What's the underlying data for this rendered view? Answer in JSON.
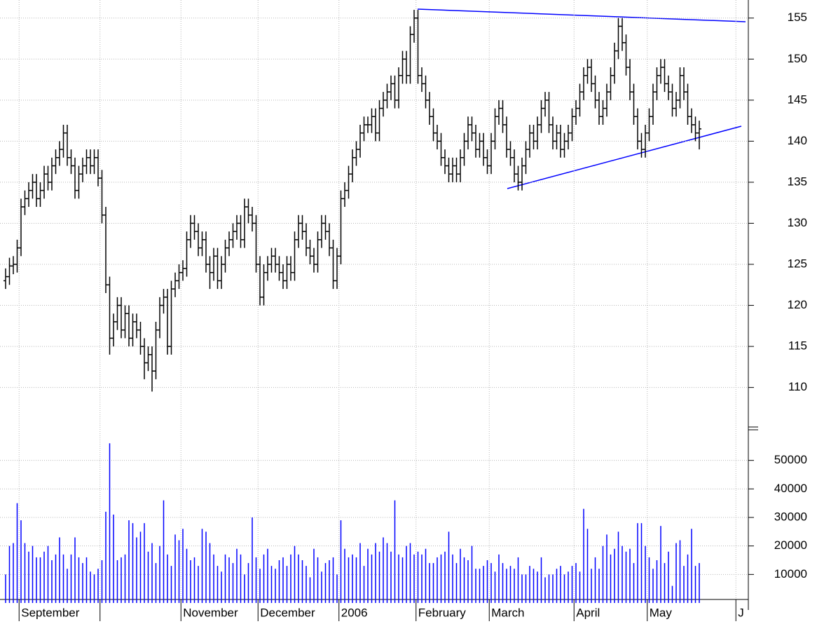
{
  "chart_data": {
    "type": "ohlc",
    "grid": true,
    "color": "#000000",
    "volume_color": "#0000ff",
    "categories": [
      null,
      null,
      null,
      null,
      "September",
      null,
      null,
      null,
      null,
      null,
      null,
      null,
      null,
      null,
      null,
      null,
      null,
      null,
      null,
      null,
      null,
      null,
      null,
      null,
      null,
      null,
      null,
      null,
      null,
      null,
      null,
      null,
      null,
      null,
      null,
      null,
      null,
      null,
      null,
      null,
      null,
      null,
      null,
      null,
      null,
      null,
      "November",
      null,
      null,
      null,
      null,
      null,
      null,
      null,
      null,
      null,
      null,
      null,
      null,
      null,
      null,
      null,
      null,
      null,
      null,
      null,
      "December",
      null,
      null,
      null,
      null,
      null,
      null,
      null,
      null,
      null,
      null,
      null,
      null,
      null,
      null,
      null,
      null,
      null,
      null,
      null,
      null,
      "2006",
      null,
      null,
      null,
      null,
      null,
      null,
      null,
      null,
      null,
      null,
      null,
      null,
      null,
      null,
      null,
      null,
      null,
      null,
      null,
      "February",
      null,
      null,
      null,
      null,
      null,
      null,
      null,
      null,
      null,
      null,
      null,
      null,
      null,
      null,
      null,
      null,
      null,
      null,
      "March",
      null,
      null,
      null,
      null,
      null,
      null,
      null,
      null,
      null,
      null,
      null,
      null,
      null,
      null,
      null,
      null,
      null,
      null,
      null,
      null,
      null,
      "April",
      null,
      null,
      null,
      null,
      null,
      null,
      null,
      null,
      null,
      null,
      null,
      null,
      null,
      null,
      null,
      null,
      null,
      null,
      "May",
      null,
      null,
      null,
      null,
      null,
      null,
      null,
      null,
      null,
      null,
      null,
      null,
      null,
      null,
      null,
      null,
      null,
      null,
      null,
      null,
      null,
      null,
      "J",
      null,
      null
    ],
    "xticks": [
      4,
      25,
      46,
      66,
      87,
      107,
      126,
      148,
      167,
      190
    ],
    "open": [
      123,
      123.5,
      124.8,
      125,
      127,
      132,
      133,
      134,
      135,
      133,
      134,
      136,
      135,
      137,
      138,
      139,
      141,
      138,
      137,
      134,
      136,
      137,
      138,
      137,
      138,
      135.5,
      131,
      122.5,
      116,
      118,
      120,
      117,
      119,
      116,
      118,
      117,
      115,
      113,
      114,
      112,
      117,
      120,
      121,
      115,
      122,
      123,
      124,
      124.5,
      128,
      130,
      129,
      127,
      128,
      125,
      124,
      126,
      123,
      125,
      127,
      128,
      129,
      130,
      128,
      132,
      131,
      130,
      125,
      121,
      124,
      125,
      126,
      125,
      124,
      123,
      125,
      124,
      128,
      130,
      129,
      127,
      126,
      125,
      128,
      130,
      129,
      127,
      123,
      126,
      133,
      134,
      136,
      138,
      139,
      141,
      142,
      142,
      143,
      141,
      144,
      145,
      146,
      147,
      145,
      148,
      150,
      148,
      153,
      155,
      148,
      147,
      145,
      143,
      141,
      140,
      138,
      137,
      136,
      137,
      136,
      138,
      140,
      142,
      141,
      139,
      140,
      138,
      137,
      140,
      143,
      144,
      142,
      139,
      138,
      136,
      135,
      137,
      139,
      141,
      140,
      142,
      144,
      145,
      142,
      140,
      141,
      139,
      140,
      141,
      143,
      144,
      146,
      148,
      149,
      147,
      145,
      143,
      144,
      146,
      148,
      151,
      154,
      152,
      149,
      146,
      143,
      140,
      139,
      141,
      143,
      146,
      148,
      149,
      147,
      146,
      144,
      145,
      148,
      146,
      143,
      142,
      141,
      null,
      null,
      null,
      null,
      null,
      null,
      null,
      null,
      null,
      null,
      null,
      null
    ],
    "high": [
      124.5,
      125.8,
      126,
      128,
      133,
      134,
      135,
      136,
      136,
      135,
      137,
      137,
      138,
      139,
      140,
      142,
      142,
      139,
      138,
      137,
      138,
      139,
      139,
      139,
      139,
      136.5,
      132,
      123.5,
      119,
      121,
      121,
      120,
      120,
      119,
      119,
      118,
      116,
      115,
      115,
      118,
      121,
      122,
      122,
      123,
      124,
      125,
      125.5,
      129,
      131,
      131,
      130,
      129,
      129,
      126,
      127,
      127,
      126,
      128,
      129,
      130,
      131,
      131,
      133,
      133,
      132,
      131,
      126,
      125,
      126,
      127,
      127,
      126,
      125,
      126,
      126,
      129,
      131,
      131,
      130,
      128,
      127,
      129,
      131,
      131,
      130,
      128,
      127,
      134,
      135,
      137,
      139,
      140,
      142,
      143,
      143,
      144,
      144,
      145,
      146,
      147,
      148,
      148,
      149,
      151,
      151,
      154,
      156,
      156,
      149,
      148,
      146,
      144,
      142,
      141,
      139,
      138,
      138,
      138,
      139,
      141,
      143,
      143,
      142,
      141,
      141,
      139,
      141,
      144,
      145,
      145,
      143,
      140,
      139,
      137,
      138,
      140,
      142,
      142,
      143,
      145,
      146,
      146,
      143,
      142,
      142,
      141,
      142,
      144,
      145,
      147,
      149,
      150,
      150,
      148,
      146,
      145,
      147,
      149,
      152,
      155,
      155,
      153,
      150,
      147,
      144,
      141,
      142,
      144,
      147,
      149,
      150,
      150,
      148,
      147,
      146,
      149,
      149,
      147,
      144,
      143,
      142.5,
      null,
      null,
      null,
      null,
      null,
      null,
      null,
      null,
      null,
      null,
      null,
      null
    ],
    "low": [
      122,
      122.5,
      123.8,
      124,
      126,
      131,
      132,
      133,
      132,
      132,
      133,
      134,
      134,
      136,
      137,
      138,
      137,
      136,
      133,
      133,
      135,
      136,
      136,
      136,
      134.5,
      130,
      121.5,
      114,
      115,
      117,
      116,
      116,
      115,
      115,
      116,
      114,
      111,
      112,
      109.5,
      111,
      116,
      119,
      114,
      114,
      121,
      122,
      123,
      123.5,
      127,
      128,
      126,
      126,
      124,
      122,
      123,
      122,
      122,
      124,
      126,
      127,
      128,
      127,
      127,
      130,
      129,
      124,
      120,
      120,
      123,
      124,
      124,
      123,
      122,
      122,
      123,
      123,
      127,
      128,
      126,
      125,
      124,
      124,
      127,
      128,
      126,
      122,
      122,
      125,
      132,
      133,
      135,
      137,
      138,
      140,
      141,
      141,
      140,
      140,
      143,
      144,
      145,
      144,
      144,
      147,
      147,
      147,
      152,
      147,
      146,
      144,
      142,
      140,
      139,
      137,
      136,
      135,
      135,
      135,
      135,
      137,
      139,
      140,
      138,
      138,
      137,
      136,
      136,
      139,
      142,
      141,
      138,
      137,
      135,
      134,
      134,
      136,
      138,
      139,
      139,
      141,
      143,
      141,
      139,
      139,
      138,
      138,
      139,
      140,
      142,
      143,
      145,
      147,
      146,
      144,
      142,
      142,
      143,
      145,
      147,
      150,
      151,
      148,
      145,
      142,
      139,
      138,
      138,
      140,
      142,
      145,
      147,
      146,
      145,
      143,
      143,
      144,
      145,
      142,
      141,
      140,
      139,
      null,
      null,
      null,
      null,
      null,
      null,
      null,
      null,
      null,
      null,
      null,
      null
    ],
    "close": [
      123.5,
      124.8,
      125,
      127,
      132,
      133,
      134,
      135,
      133,
      134,
      136,
      135,
      137,
      138,
      139,
      141,
      138,
      137,
      134,
      136,
      137,
      138,
      137,
      138,
      135.5,
      131,
      122.5,
      116,
      118,
      120,
      117,
      119,
      116,
      118,
      117,
      115,
      113,
      114,
      112,
      117,
      120,
      121,
      115,
      122,
      123,
      124,
      124.5,
      128,
      130,
      129,
      127,
      128,
      125,
      124,
      126,
      123,
      125,
      127,
      128,
      129,
      130,
      128,
      132,
      131,
      130,
      125,
      121,
      124,
      125,
      126,
      125,
      124,
      123,
      125,
      124,
      128,
      130,
      129,
      127,
      126,
      125,
      128,
      130,
      129,
      127,
      123,
      126,
      133,
      134,
      136,
      138,
      139,
      141,
      142,
      142,
      143,
      141,
      144,
      145,
      146,
      147,
      145,
      148,
      150,
      148,
      153,
      155,
      148,
      147,
      145,
      143,
      141,
      140,
      138,
      137,
      136,
      137,
      136,
      138,
      140,
      142,
      141,
      139,
      140,
      138,
      137,
      140,
      143,
      144,
      142,
      139,
      138,
      136,
      135,
      137,
      139,
      141,
      140,
      142,
      144,
      145,
      142,
      140,
      141,
      139,
      140,
      141,
      143,
      144,
      146,
      148,
      149,
      147,
      145,
      143,
      144,
      146,
      148,
      151,
      154,
      152,
      149,
      146,
      143,
      140,
      139,
      141,
      143,
      146,
      148,
      149,
      147,
      146,
      144,
      145,
      148,
      146,
      143,
      142,
      141,
      141.5,
      null,
      null,
      null,
      null,
      null,
      null,
      null,
      null,
      null,
      null,
      null,
      null
    ],
    "volume": [
      10000,
      20000,
      21000,
      35000,
      29000,
      21000,
      18000,
      20000,
      16000,
      16000,
      18000,
      20000,
      15000,
      17000,
      23000,
      17000,
      12000,
      17000,
      23000,
      16000,
      14000,
      16000,
      11000,
      10000,
      12000,
      15000,
      32000,
      56000,
      31000,
      15000,
      16000,
      17000,
      29000,
      28000,
      23000,
      25000,
      28000,
      18000,
      21000,
      14000,
      20000,
      36000,
      17000,
      13000,
      24000,
      22000,
      26000,
      19000,
      15000,
      16000,
      13000,
      26000,
      25000,
      21000,
      17000,
      13000,
      11000,
      17000,
      16000,
      14000,
      19000,
      17000,
      10000,
      14000,
      30000,
      16000,
      12000,
      17000,
      19000,
      13000,
      12000,
      15000,
      16000,
      13000,
      17000,
      20000,
      17000,
      15000,
      13000,
      9000,
      19000,
      16000,
      11000,
      14000,
      15000,
      16000,
      10000,
      29000,
      19000,
      16000,
      17000,
      16000,
      21000,
      13000,
      19000,
      17000,
      21000,
      18000,
      23000,
      21000,
      18000,
      36000,
      17000,
      16000,
      20000,
      21000,
      17000,
      18000,
      17000,
      19000,
      14000,
      14000,
      16000,
      17000,
      18000,
      25000,
      17000,
      14000,
      19000,
      16000,
      15000,
      20000,
      12000,
      12000,
      13000,
      15000,
      14000,
      11000,
      17000,
      14000,
      12000,
      13000,
      12000,
      16000,
      10000,
      10000,
      13000,
      12000,
      11000,
      16000,
      9000,
      10000,
      10000,
      12000,
      13000,
      10000,
      11000,
      13000,
      14000,
      11000,
      33000,
      26000,
      12000,
      16000,
      12000,
      20000,
      24000,
      17000,
      19000,
      25000,
      20000,
      18000,
      19000,
      14000,
      28000,
      28000,
      20000,
      16000,
      12000,
      15000,
      27000,
      14000,
      18000,
      6000,
      21000,
      22000,
      13000,
      17000,
      26000,
      13000,
      14000,
      null,
      null,
      null,
      null,
      null,
      null,
      null,
      null,
      null,
      null,
      null,
      null
    ],
    "ylim": [
      105.1,
      157.2
    ],
    "yticks": [
      110,
      115,
      120,
      125,
      130,
      135,
      140,
      145,
      150,
      155
    ],
    "volume_ylim": [
      0,
      60000
    ],
    "volume_yticks": [
      10000,
      20000,
      30000,
      40000,
      50000
    ]
  }
}
